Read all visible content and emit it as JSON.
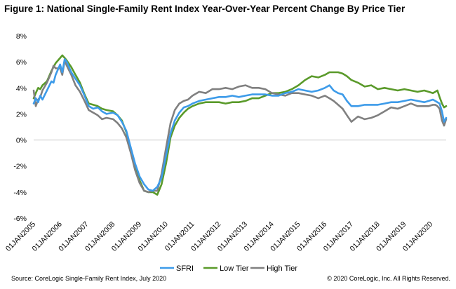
{
  "title": "Figure 1: National Single-Family Rent Index Year-Over-Year Percent Change By Price Tier",
  "source": "Source: CoreLogic Single-Family Rent Index, July 2020",
  "copyright": "© 2020 CoreLogic, Inc. All Rights Reserved.",
  "colors": {
    "SFRI": "#3d9be9",
    "Low Tier": "#5a9a2a",
    "High Tier": "#808080",
    "zero_line": "#c8c8c8"
  },
  "chart_data": {
    "type": "line",
    "title": "Figure 1: National Single-Family Rent Index Year-Over-Year Percent Change By Price Tier",
    "xlabel": "",
    "ylabel": "",
    "ylim": [
      -6,
      8
    ],
    "yticks": [
      -6,
      -4,
      -2,
      0,
      2,
      4,
      6,
      8
    ],
    "ytick_labels": [
      "-6%",
      "-4%",
      "-2%",
      "0%",
      "2%",
      "4%",
      "6%",
      "8%"
    ],
    "xlim": [
      2005.0,
      2020.58
    ],
    "xticks": [
      2005,
      2006,
      2007,
      2008,
      2009,
      2010,
      2011,
      2012,
      2013,
      2014,
      2015,
      2016,
      2017,
      2018,
      2019,
      2020
    ],
    "xtick_labels": [
      "01JAN2005",
      "01JAN2006",
      "01JAN2007",
      "01JAN2008",
      "01JAN2009",
      "01JAN2010",
      "01JAN2011",
      "01JAN2012",
      "01JAN2013",
      "01JAN2014",
      "01JAN2015",
      "01JAN2016",
      "01JAN2017",
      "01JAN2018",
      "01JAN2019",
      "01JAN2020"
    ],
    "grid": false,
    "legend_position": "bottom",
    "series": [
      {
        "name": "SFRI",
        "x": [
          2005.0,
          2005.08,
          2005.17,
          2005.25,
          2005.33,
          2005.5,
          2005.67,
          2005.75,
          2005.83,
          2006.0,
          2006.08,
          2006.17,
          2006.25,
          2006.42,
          2006.58,
          2006.75,
          2006.92,
          2007.08,
          2007.25,
          2007.42,
          2007.58,
          2007.75,
          2008.0,
          2008.17,
          2008.33,
          2008.5,
          2008.67,
          2008.83,
          2009.0,
          2009.17,
          2009.33,
          2009.5,
          2009.67,
          2009.83,
          2010.0,
          2010.17,
          2010.33,
          2010.5,
          2010.67,
          2010.83,
          2011.0,
          2011.25,
          2011.5,
          2011.75,
          2012.0,
          2012.25,
          2012.5,
          2012.75,
          2013.0,
          2013.25,
          2013.5,
          2013.75,
          2014.0,
          2014.25,
          2014.5,
          2014.75,
          2015.0,
          2015.25,
          2015.5,
          2015.75,
          2016.0,
          2016.17,
          2016.33,
          2016.5,
          2016.67,
          2016.83,
          2017.0,
          2017.25,
          2017.5,
          2017.75,
          2018.0,
          2018.25,
          2018.5,
          2018.75,
          2019.0,
          2019.25,
          2019.5,
          2019.75,
          2019.92,
          2020.08,
          2020.17,
          2020.25,
          2020.33,
          2020.42,
          2020.5,
          2020.58
        ],
        "y": [
          2.8,
          3.2,
          2.9,
          3.4,
          3.1,
          3.8,
          4.5,
          4.4,
          5.0,
          5.8,
          5.2,
          6.2,
          6.0,
          5.2,
          4.7,
          4.2,
          3.4,
          2.6,
          2.4,
          2.5,
          2.2,
          2.0,
          2.1,
          1.9,
          1.4,
          0.7,
          -0.6,
          -1.8,
          -2.8,
          -3.4,
          -3.8,
          -3.9,
          -3.6,
          -2.9,
          -1.2,
          0.5,
          1.5,
          2.1,
          2.5,
          2.6,
          2.8,
          3.0,
          3.1,
          3.2,
          3.3,
          3.3,
          3.4,
          3.3,
          3.4,
          3.5,
          3.5,
          3.5,
          3.4,
          3.4,
          3.6,
          3.7,
          3.9,
          3.8,
          3.7,
          3.8,
          4.0,
          4.2,
          3.8,
          3.6,
          3.5,
          3.0,
          2.6,
          2.6,
          2.7,
          2.7,
          2.7,
          2.8,
          2.9,
          2.9,
          3.0,
          3.1,
          3.0,
          2.9,
          3.0,
          3.1,
          3.0,
          2.9,
          2.8,
          2.2,
          1.4,
          1.7
        ]
      },
      {
        "name": "Low Tier",
        "x": [
          2005.0,
          2005.08,
          2005.17,
          2005.25,
          2005.33,
          2005.5,
          2005.67,
          2005.75,
          2005.83,
          2006.0,
          2006.08,
          2006.17,
          2006.25,
          2006.42,
          2006.58,
          2006.75,
          2006.92,
          2007.08,
          2007.25,
          2007.42,
          2007.58,
          2007.75,
          2008.0,
          2008.17,
          2008.33,
          2008.5,
          2008.67,
          2008.83,
          2009.0,
          2009.17,
          2009.33,
          2009.5,
          2009.67,
          2009.83,
          2010.0,
          2010.17,
          2010.33,
          2010.5,
          2010.67,
          2010.83,
          2011.0,
          2011.25,
          2011.5,
          2011.75,
          2012.0,
          2012.25,
          2012.5,
          2012.75,
          2013.0,
          2013.25,
          2013.5,
          2013.75,
          2014.0,
          2014.25,
          2014.5,
          2014.75,
          2015.0,
          2015.25,
          2015.5,
          2015.75,
          2016.0,
          2016.17,
          2016.33,
          2016.5,
          2016.67,
          2016.83,
          2017.0,
          2017.25,
          2017.5,
          2017.75,
          2018.0,
          2018.25,
          2018.5,
          2018.75,
          2019.0,
          2019.25,
          2019.5,
          2019.75,
          2019.92,
          2020.08,
          2020.17,
          2020.25,
          2020.33,
          2020.42,
          2020.5,
          2020.58
        ],
        "y": [
          3.2,
          3.6,
          4.0,
          3.9,
          4.2,
          4.5,
          5.3,
          5.6,
          5.9,
          6.3,
          6.5,
          6.3,
          6.1,
          5.6,
          5.0,
          4.4,
          3.5,
          2.8,
          2.7,
          2.6,
          2.4,
          2.3,
          2.2,
          1.9,
          1.5,
          0.6,
          -0.7,
          -1.9,
          -3.1,
          -3.9,
          -4.0,
          -4.0,
          -4.2,
          -3.4,
          -1.8,
          0.2,
          1.1,
          1.7,
          2.1,
          2.4,
          2.6,
          2.8,
          2.9,
          2.9,
          2.9,
          2.8,
          2.9,
          2.9,
          3.0,
          3.2,
          3.2,
          3.4,
          3.6,
          3.6,
          3.7,
          3.9,
          4.2,
          4.6,
          4.9,
          4.8,
          5.0,
          5.2,
          5.2,
          5.2,
          5.1,
          4.9,
          4.6,
          4.4,
          4.1,
          4.2,
          3.9,
          4.0,
          3.9,
          3.8,
          3.9,
          3.8,
          3.7,
          3.8,
          3.7,
          3.6,
          3.7,
          3.8,
          3.3,
          2.8,
          2.5,
          2.6
        ]
      },
      {
        "name": "High Tier",
        "x": [
          2005.0,
          2005.08,
          2005.17,
          2005.25,
          2005.33,
          2005.5,
          2005.67,
          2005.75,
          2005.83,
          2006.0,
          2006.08,
          2006.17,
          2006.25,
          2006.42,
          2006.58,
          2006.75,
          2006.92,
          2007.08,
          2007.25,
          2007.42,
          2007.58,
          2007.75,
          2008.0,
          2008.17,
          2008.33,
          2008.5,
          2008.67,
          2008.83,
          2009.0,
          2009.17,
          2009.33,
          2009.5,
          2009.67,
          2009.83,
          2010.0,
          2010.17,
          2010.33,
          2010.5,
          2010.67,
          2010.83,
          2011.0,
          2011.25,
          2011.5,
          2011.75,
          2012.0,
          2012.25,
          2012.5,
          2012.75,
          2013.0,
          2013.25,
          2013.5,
          2013.75,
          2014.0,
          2014.25,
          2014.5,
          2014.75,
          2015.0,
          2015.25,
          2015.5,
          2015.75,
          2016.0,
          2016.17,
          2016.33,
          2016.5,
          2016.67,
          2016.83,
          2017.0,
          2017.25,
          2017.5,
          2017.75,
          2018.0,
          2018.25,
          2018.5,
          2018.75,
          2019.0,
          2019.25,
          2019.5,
          2019.75,
          2019.92,
          2020.08,
          2020.17,
          2020.25,
          2020.33,
          2020.42,
          2020.5,
          2020.58
        ],
        "y": [
          3.8,
          2.6,
          3.1,
          3.3,
          3.8,
          4.4,
          5.2,
          5.7,
          5.5,
          5.5,
          5.0,
          6.1,
          5.7,
          5.0,
          4.2,
          3.7,
          3.0,
          2.3,
          2.1,
          1.9,
          1.6,
          1.7,
          1.6,
          1.3,
          0.9,
          0.2,
          -1.0,
          -2.3,
          -3.3,
          -3.9,
          -4.0,
          -3.9,
          -3.9,
          -2.6,
          -0.6,
          1.3,
          2.3,
          2.8,
          3.0,
          3.1,
          3.4,
          3.7,
          3.6,
          3.9,
          3.9,
          4.0,
          3.9,
          4.1,
          4.2,
          4.0,
          4.0,
          3.9,
          3.6,
          3.5,
          3.4,
          3.6,
          3.6,
          3.5,
          3.4,
          3.2,
          3.4,
          3.2,
          3.0,
          2.7,
          2.4,
          1.9,
          1.4,
          1.8,
          1.6,
          1.7,
          1.9,
          2.2,
          2.5,
          2.4,
          2.6,
          2.8,
          2.6,
          2.6,
          2.6,
          2.7,
          2.7,
          2.6,
          2.4,
          1.5,
          1.1,
          1.6
        ]
      }
    ]
  }
}
